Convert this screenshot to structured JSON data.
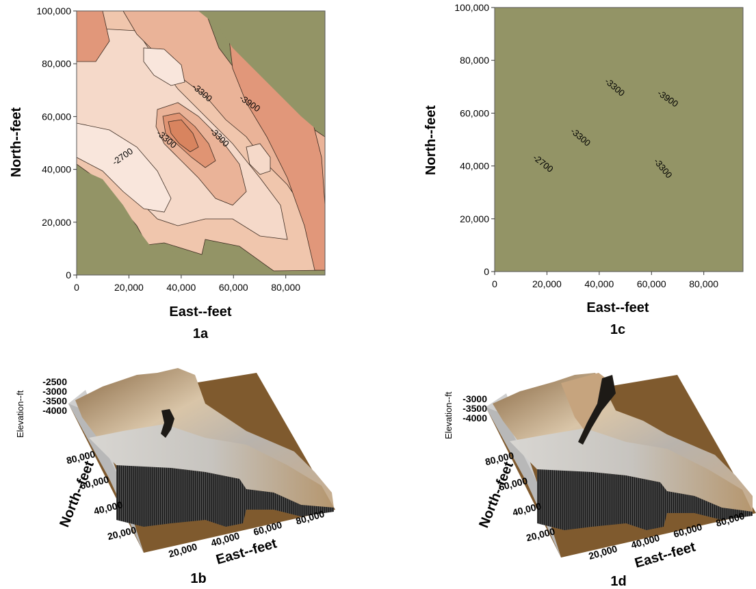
{
  "chart_data": [
    {
      "id": "1a",
      "type": "contour",
      "caption": "1a",
      "xlabel": "East--feet",
      "ylabel": "North--feet",
      "xlim": [
        0,
        95000
      ],
      "ylim": [
        0,
        100000
      ],
      "xticks": [
        "0",
        "20,000",
        "40,000",
        "60,000",
        "80,000"
      ],
      "xtick_values": [
        0,
        20000,
        40000,
        60000,
        80000
      ],
      "yticks": [
        "0",
        "20,000",
        "40,000",
        "60,000",
        "80,000",
        "100,000"
      ],
      "ytick_values": [
        0,
        20000,
        40000,
        60000,
        80000,
        100000
      ],
      "contour_labels": [
        "-2700",
        "-3300",
        "-3300",
        "-3300",
        "-3900"
      ],
      "faulted": false,
      "colors": {
        "background": "#939466",
        "shallow": "#f7e3d8",
        "deep": "#d8845f"
      }
    },
    {
      "id": "1c",
      "type": "contour",
      "caption": "1c",
      "xlabel": "East--feet",
      "ylabel": "North--feet",
      "xlim": [
        0,
        95000
      ],
      "ylim": [
        0,
        100000
      ],
      "xticks": [
        "0",
        "20,000",
        "40,000",
        "60,000",
        "80,000"
      ],
      "xtick_values": [
        0,
        20000,
        40000,
        60000,
        80000
      ],
      "yticks": [
        "0",
        "20,000",
        "40,000",
        "60,000",
        "80,000",
        "100,000"
      ],
      "ytick_values": [
        0,
        20000,
        40000,
        60000,
        80000,
        100000
      ],
      "contour_labels": [
        "-2700",
        "-3300",
        "-3300",
        "-3300",
        "-3900"
      ],
      "faulted": true,
      "colors": {
        "background": "#939466",
        "shallow": "#f7e3d8",
        "deep": "#d8845f"
      }
    },
    {
      "id": "1b",
      "type": "surface3d",
      "caption": "1b",
      "xlabel": "East--feet",
      "ylabel": "North--feet",
      "zlabel": "Elevation--ft",
      "xticks": [
        "20,000",
        "40,000",
        "60,000",
        "80,000"
      ],
      "yticks": [
        "20,000",
        "40,000",
        "60,000",
        "80,000"
      ],
      "zticks": [
        "-2500",
        "-3000",
        "-3500",
        "-4000"
      ],
      "faulted": false,
      "colors": {
        "base": "#7f5a2e",
        "wall": "#c8c8c8"
      }
    },
    {
      "id": "1d",
      "type": "surface3d",
      "caption": "1d",
      "xlabel": "East--feet",
      "ylabel": "North--feet",
      "zlabel": "Elevation--ft",
      "xticks": [
        "20,000",
        "40,000",
        "60,000",
        "80,000"
      ],
      "yticks": [
        "20,000",
        "40,000",
        "60,000",
        "80,000"
      ],
      "zticks": [
        "-3000",
        "-3500",
        "-4000"
      ],
      "faulted": true,
      "colors": {
        "base": "#7f5a2e",
        "wall": "#c8c8c8"
      }
    }
  ]
}
